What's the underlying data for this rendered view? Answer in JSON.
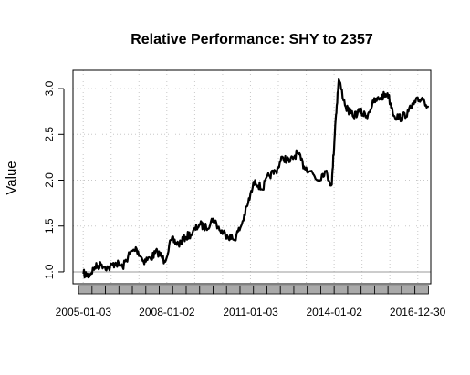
{
  "chart_data": {
    "type": "line",
    "title": "Relative Performance: SHY to 2357",
    "xlabel": "",
    "ylabel": "Value",
    "ylim": [
      0.87,
      3.2
    ],
    "xlim": [
      "2004-08-20",
      "2017-06-20"
    ],
    "grid": true,
    "y_ticks": [
      1.0,
      1.5,
      2.0,
      2.5,
      3.0
    ],
    "y_tick_labels": [
      "1.0",
      "1.5",
      "2.0",
      "2.5",
      "3.0"
    ],
    "x_tick_labels": [
      "2005-01-03",
      "2008-01-02",
      "2011-01-03",
      "2014-01-02",
      "2016-12-30"
    ],
    "x_tick_dates": [
      "2005-01-03",
      "2008-01-02",
      "2011-01-03",
      "2014-01-02",
      "2016-12-30"
    ],
    "reference_line": 1.0,
    "series": [
      {
        "color": "#000000",
        "x": [
          "2005-01-03",
          "2005-03-15",
          "2005-06-01",
          "2005-09-01",
          "2005-12-01",
          "2006-03-01",
          "2006-06-01",
          "2006-09-01",
          "2006-12-01",
          "2007-03-01",
          "2007-06-01",
          "2007-09-01",
          "2007-12-03",
          "2008-03-03",
          "2008-06-02",
          "2008-09-02",
          "2008-12-01",
          "2009-03-02",
          "2009-06-01",
          "2009-09-01",
          "2009-12-01",
          "2010-03-01",
          "2010-06-01",
          "2010-09-01",
          "2010-12-01",
          "2011-03-01",
          "2011-06-01",
          "2011-09-01",
          "2011-12-01",
          "2012-03-01",
          "2012-06-01",
          "2012-09-04",
          "2012-12-03",
          "2013-03-01",
          "2013-06-03",
          "2013-09-03",
          "2013-12-02",
          "2014-01-15",
          "2014-03-03",
          "2014-06-02",
          "2014-09-02",
          "2014-12-01",
          "2015-03-02",
          "2015-06-01",
          "2015-09-01",
          "2015-12-01",
          "2016-03-01",
          "2016-06-01",
          "2016-09-01",
          "2016-12-01",
          "2017-03-01",
          "2017-05-25"
        ],
        "values": [
          0.98,
          0.96,
          1.05,
          1.08,
          1.04,
          1.1,
          1.05,
          1.2,
          1.25,
          1.12,
          1.15,
          1.22,
          1.12,
          1.35,
          1.3,
          1.38,
          1.42,
          1.52,
          1.48,
          1.58,
          1.45,
          1.4,
          1.35,
          1.5,
          1.75,
          2.0,
          1.9,
          2.05,
          2.1,
          2.25,
          2.2,
          2.3,
          2.15,
          2.1,
          2.0,
          2.1,
          1.95,
          2.6,
          3.1,
          2.8,
          2.7,
          2.75,
          2.7,
          2.85,
          2.9,
          2.95,
          2.7,
          2.68,
          2.75,
          2.85,
          2.9,
          2.8
        ]
      }
    ]
  }
}
